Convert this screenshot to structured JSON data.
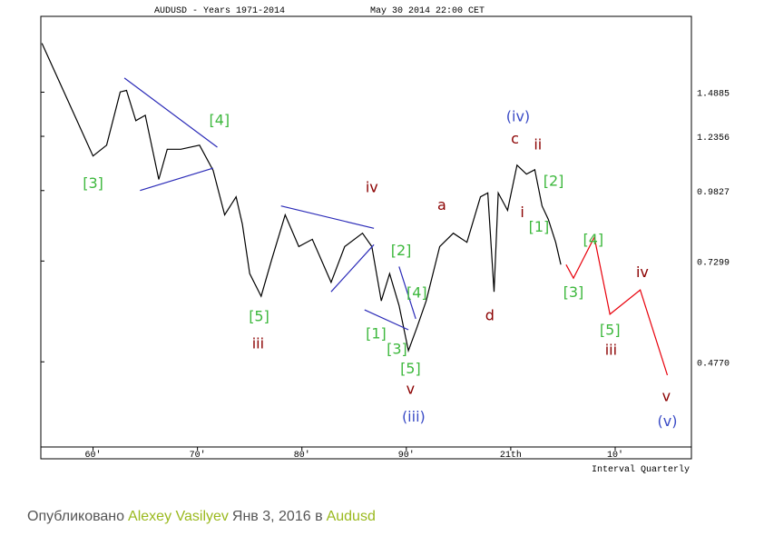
{
  "chart_data": {
    "type": "line",
    "title": "AUDUSD - Years 1971-2014",
    "subtitle": "May 30 2014 22:00 CET",
    "x_label": "Interval Quarterly",
    "log_scale_y": true,
    "xlim": [
      1955,
      2017.3
    ],
    "ylim": [
      0.333,
      2.05
    ],
    "xticks": [
      {
        "value": 1960,
        "label": "60′"
      },
      {
        "value": 1970,
        "label": "70′"
      },
      {
        "value": 1980,
        "label": "80′"
      },
      {
        "value": 1990,
        "label": "90′"
      },
      {
        "value": 2000,
        "label": "21th"
      },
      {
        "value": 2010,
        "label": "10′"
      }
    ],
    "yticks": [
      1.4885,
      1.2356,
      0.9827,
      0.7299,
      {
        "value": 0.477,
        "label": "0.4770"
      }
    ],
    "series": [
      {
        "color": "#000000",
        "x": [
          1955.1,
          1960,
          1961.3,
          1962.6,
          1963.2,
          1964.1,
          1965,
          1966.3,
          1967.1,
          1968.4,
          1970.2,
          1971.5,
          1972.6,
          1973.7,
          1974.3,
          1975,
          1976.1,
          1977.1,
          1978.4,
          1979.7,
          1981,
          1982.8,
          1984.1,
          1985.8,
          1986.7,
          1987.6,
          1988.4,
          1989.3,
          1990.2,
          1991,
          1991.9,
          1993.2,
          1994.5,
          1995.8,
          1997.1,
          1997.8,
          1998.4,
          1998.8,
          1999.7,
          2000.6,
          2001.5,
          2002.3,
          2003,
          2003.6,
          2004.3,
          2004.8
        ],
        "values": [
          1.83,
          1.137,
          1.19,
          1.49,
          1.5,
          1.32,
          1.35,
          1.03,
          1.17,
          1.17,
          1.19,
          1.07,
          0.887,
          0.957,
          0.853,
          0.692,
          0.629,
          0.733,
          0.887,
          0.776,
          0.8,
          0.667,
          0.776,
          0.821,
          0.776,
          0.617,
          0.692,
          0.605,
          0.5,
          0.55,
          0.617,
          0.776,
          0.821,
          0.79,
          0.957,
          0.973,
          0.641,
          0.973,
          0.904,
          1.094,
          1.053,
          1.073,
          0.921,
          0.87,
          0.79,
          0.719
        ]
      },
      {
        "color": "#e8000b",
        "x": [
          2005.3,
          2006,
          2008,
          2009.5,
          2012.4,
          2015
        ],
        "values": [
          0.719,
          0.679,
          0.807,
          0.583,
          0.646,
          0.451
        ]
      },
      {
        "color": "#2b2bb8",
        "x": [
          1963,
          1971.9
        ],
        "values": [
          1.58,
          1.18
        ]
      },
      {
        "color": "#2b2bb8",
        "x": [
          1964.5,
          1971.5
        ],
        "values": [
          0.983,
          1.08
        ]
      },
      {
        "color": "#2b2bb8",
        "x": [
          1978,
          1986.9
        ],
        "values": [
          0.921,
          0.838
        ]
      },
      {
        "color": "#2b2bb8",
        "x": [
          1982.8,
          1986.9
        ],
        "values": [
          0.641,
          0.782
        ]
      },
      {
        "color": "#2b2bb8",
        "x": [
          1986,
          1990.2
        ],
        "values": [
          0.594,
          0.546
        ]
      },
      {
        "color": "#2b2bb8",
        "x": [
          1989.3,
          1990.9
        ],
        "values": [
          0.713,
          0.572
        ]
      }
    ],
    "annotations": [
      {
        "text": "[3]",
        "x": 1960,
        "y": 1.01,
        "color": "#3db83d"
      },
      {
        "text": "[4]",
        "x": 1972.1,
        "y": 1.32,
        "color": "#3db83d"
      },
      {
        "text": "[5]",
        "x": 1975.9,
        "y": 0.576,
        "color": "#3db83d"
      },
      {
        "text": "iii",
        "x": 1975.8,
        "y": 0.514,
        "color": "#8b0000"
      },
      {
        "text": "iv",
        "x": 1986.7,
        "y": 0.994,
        "color": "#8b0000"
      },
      {
        "text": "a",
        "x": 1993.4,
        "y": 0.921,
        "color": "#8b0000"
      },
      {
        "text": "[2]",
        "x": 1989.5,
        "y": 0.761,
        "color": "#3db83d"
      },
      {
        "text": "[4]",
        "x": 1991,
        "y": 0.636,
        "color": "#3db83d"
      },
      {
        "text": "[1]",
        "x": 1987.1,
        "y": 0.536,
        "color": "#3db83d"
      },
      {
        "text": "[3]",
        "x": 1989.1,
        "y": 0.502,
        "color": "#3db83d"
      },
      {
        "text": "[5]",
        "x": 1990.4,
        "y": 0.462,
        "color": "#3db83d"
      },
      {
        "text": "v",
        "x": 1990.4,
        "y": 0.424,
        "color": "#8b0000"
      },
      {
        "text": "(iii)",
        "x": 1990.7,
        "y": 0.377,
        "color": "#3a4bc6"
      },
      {
        "text": "d",
        "x": 1998,
        "y": 0.578,
        "color": "#8b0000"
      },
      {
        "text": "(iv)",
        "x": 2000.7,
        "y": 1.34,
        "color": "#3a4bc6"
      },
      {
        "text": "c",
        "x": 2000.4,
        "y": 1.22,
        "color": "#8b0000"
      },
      {
        "text": "ii",
        "x": 2002.6,
        "y": 1.19,
        "color": "#8b0000"
      },
      {
        "text": "[2]",
        "x": 2004.1,
        "y": 1.02,
        "color": "#3db83d"
      },
      {
        "text": "i",
        "x": 2001.1,
        "y": 0.893,
        "color": "#8b0000"
      },
      {
        "text": "[1]",
        "x": 2002.7,
        "y": 0.84,
        "color": "#3db83d"
      },
      {
        "text": "[4]",
        "x": 2007.9,
        "y": 0.797,
        "color": "#3db83d"
      },
      {
        "text": "[3]",
        "x": 2006,
        "y": 0.638,
        "color": "#3db83d"
      },
      {
        "text": "[5]",
        "x": 2009.5,
        "y": 0.544,
        "color": "#3db83d"
      },
      {
        "text": "iii",
        "x": 2009.6,
        "y": 0.5,
        "color": "#8b0000"
      },
      {
        "text": "iv",
        "x": 2012.6,
        "y": 0.694,
        "color": "#8b0000"
      },
      {
        "text": "v",
        "x": 2014.9,
        "y": 0.411,
        "color": "#8b0000"
      },
      {
        "text": "(v)",
        "x": 2015,
        "y": 0.37,
        "color": "#3a4bc6"
      }
    ]
  },
  "footer": {
    "parts": [
      {
        "text": "Опубликовано",
        "color": "#555555"
      },
      {
        "text": "Alexey Vasilyev",
        "color": "#9ab91e"
      },
      {
        "text": "Янв 3, 2016 в",
        "color": "#555555"
      },
      {
        "text": "Audusd",
        "color": "#9ab91e"
      }
    ]
  }
}
